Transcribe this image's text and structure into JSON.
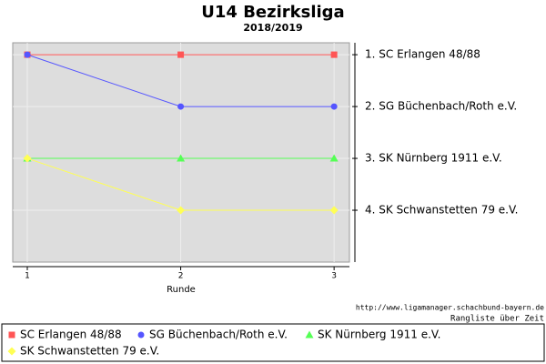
{
  "chart_data": {
    "type": "line",
    "title": "U14 Bezirksliga",
    "subtitle": "2018/2019",
    "x_label": "Runde",
    "x": [
      1,
      2,
      3
    ],
    "xlim": [
      0.905,
      3.1
    ],
    "xticks": [
      1,
      2,
      3
    ],
    "ylim": [
      0.77,
      5
    ],
    "y_inverted": true,
    "yticks": [
      {
        "value": 1,
        "label": "1. SC Erlangen 48/88"
      },
      {
        "value": 2,
        "label": "2. SG Büchenbach/Roth e.V."
      },
      {
        "value": 3,
        "label": "3. SK Nürnberg 1911 e.V."
      },
      {
        "value": 4,
        "label": "4. SK Schwanstetten 79 e.V."
      }
    ],
    "grid": true,
    "series": [
      {
        "name": "SC Erlangen 48/88",
        "color": "#ff5555",
        "marker": "square",
        "values": [
          1,
          1,
          1
        ]
      },
      {
        "name": "SG Büchenbach/Roth e.V.",
        "color": "#5555ff",
        "marker": "circle",
        "values": [
          1,
          2,
          2
        ]
      },
      {
        "name": "SK Nürnberg 1911 e.V.",
        "color": "#55ff55",
        "marker": "triangle",
        "values": [
          3,
          3,
          3
        ]
      },
      {
        "name": "SK Schwanstetten 79 e.V.",
        "color": "#ffff55",
        "marker": "diamond",
        "values": [
          3,
          4,
          4
        ]
      }
    ],
    "source": "http://www.ligamanager.schachbund-bayern.de",
    "caption": "Rangliste über Zeit"
  }
}
